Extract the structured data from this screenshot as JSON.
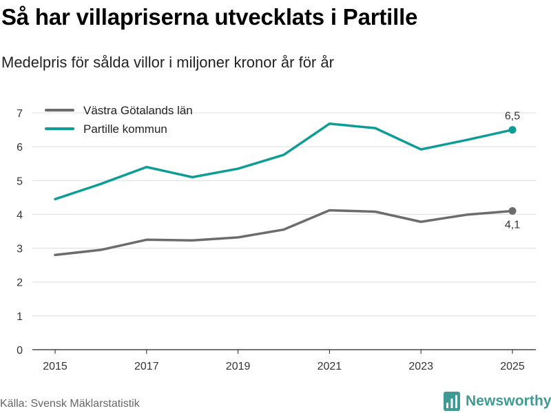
{
  "title": "Så har villapriserna utvecklats i Partille",
  "subtitle": "Medelpris för sålda villor i miljoner kronor år för år",
  "source": "Källa: Svensk Mäklarstatistik",
  "brand": "Newsworthy",
  "colors": {
    "gray": "#6d6b6e",
    "teal": "#0e9d96",
    "grid": "#dcdcdc",
    "brand": "#3f9a93"
  },
  "chart_data": {
    "type": "line",
    "title": "Så har villapriserna utvecklats i Partille",
    "subtitle": "Medelpris för sålda villor i miljoner kronor år för år",
    "xlabel": "",
    "ylabel": "",
    "x": [
      2015,
      2016,
      2017,
      2018,
      2019,
      2020,
      2021,
      2022,
      2023,
      2024,
      2025
    ],
    "x_ticks": [
      "2015",
      "2017",
      "2019",
      "2021",
      "2023",
      "2025"
    ],
    "y_ticks": [
      "0",
      "1",
      "2",
      "3",
      "4",
      "5",
      "6",
      "7"
    ],
    "ylim": [
      0,
      7
    ],
    "grid": true,
    "legend_position": "top-left",
    "series": [
      {
        "name": "Västra Götalands län",
        "color": "#6d6b6e",
        "values": [
          2.8,
          2.95,
          3.25,
          3.23,
          3.32,
          3.55,
          4.12,
          4.08,
          3.78,
          3.99,
          4.1
        ],
        "end_label": "4,1"
      },
      {
        "name": "Partille kommun",
        "color": "#0e9d96",
        "values": [
          4.45,
          4.9,
          5.4,
          5.1,
          5.35,
          5.76,
          6.68,
          6.55,
          5.92,
          6.2,
          6.5
        ],
        "end_label": "6,5"
      }
    ]
  }
}
